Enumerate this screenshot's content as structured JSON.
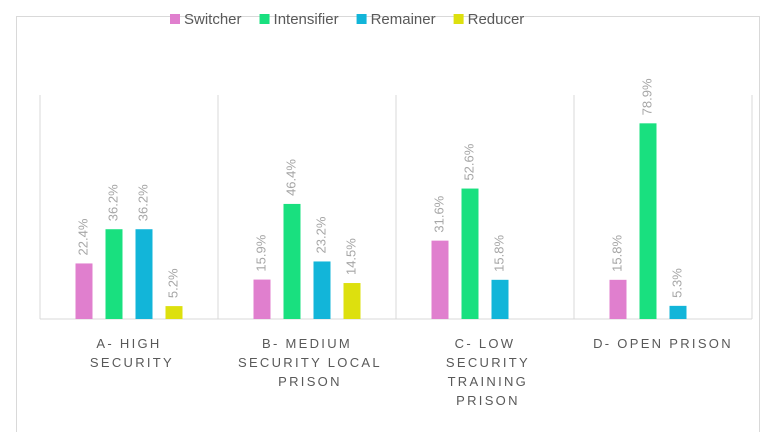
{
  "chart_data": {
    "type": "bar",
    "categories": [
      "A- HIGH SECURITY",
      "B- MEDIUM SECURITY LOCAL PRISON",
      "C- LOW SECURITY TRAINING PRISON",
      "D- OPEN PRISON"
    ],
    "series": [
      {
        "name": "Switcher",
        "color": "#e07fce",
        "values": [
          22.4,
          15.9,
          31.6,
          15.8
        ],
        "value_labels": [
          "22.4%",
          "15.9%",
          "31.6%",
          "15.8%"
        ]
      },
      {
        "name": "Intensifier",
        "color": "#19e07f",
        "values": [
          36.2,
          46.4,
          52.6,
          78.9
        ],
        "value_labels": [
          "36.2%",
          "46.4%",
          "52.6%",
          "78.9%"
        ]
      },
      {
        "name": "Remainer",
        "color": "#12b5d9",
        "values": [
          36.2,
          23.2,
          15.8,
          5.3
        ],
        "value_labels": [
          "36.2%",
          "23.2%",
          "15.8%",
          "5.3%"
        ]
      },
      {
        "name": "Reducer",
        "color": "#dde00e",
        "values": [
          5.2,
          14.5,
          null,
          null
        ],
        "value_labels": [
          "5.2%",
          "14.5%",
          null,
          null
        ]
      }
    ],
    "legend": "top"
  }
}
